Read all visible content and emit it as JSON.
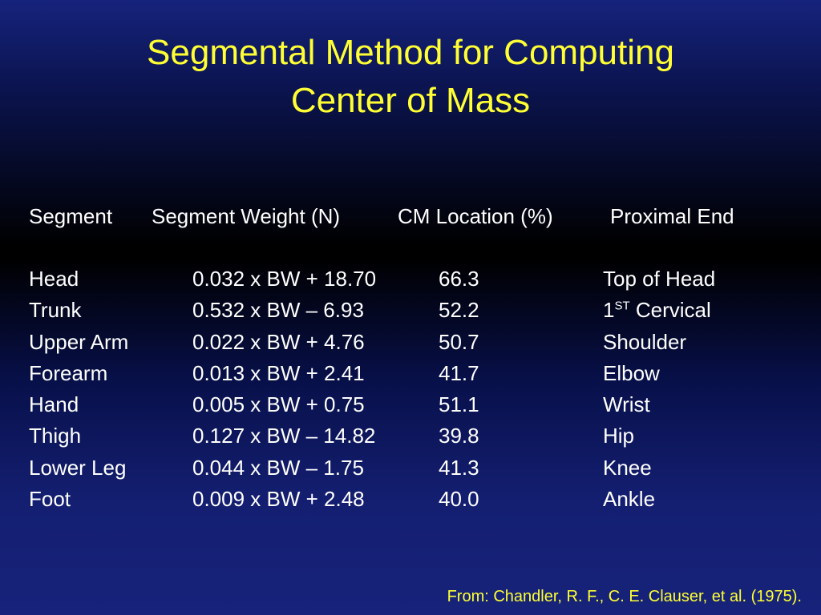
{
  "title": {
    "line1": "Segmental Method for Computing",
    "line2": "Center of Mass"
  },
  "table": {
    "headers": {
      "segment": "Segment",
      "weight": "Segment Weight (N)",
      "cm": "CM Location (%)",
      "proximal": "Proximal End"
    },
    "rows": [
      {
        "segment": "Head",
        "weight": "0.032 x BW + 18.70",
        "cm": "66.3",
        "proximal": "Top of Head",
        "proximal_sup": "",
        "proximal_rest": ""
      },
      {
        "segment": "Trunk",
        "weight": "0.532 x BW – 6.93",
        "cm": "52.2",
        "proximal": "1",
        "proximal_sup": "ST",
        "proximal_rest": " Cervical"
      },
      {
        "segment": "Upper Arm",
        "weight": "0.022 x BW + 4.76",
        "cm": "50.7",
        "proximal": "Shoulder",
        "proximal_sup": "",
        "proximal_rest": ""
      },
      {
        "segment": "Forearm",
        "weight": "0.013 x BW + 2.41",
        "cm": "41.7",
        "proximal": "Elbow",
        "proximal_sup": "",
        "proximal_rest": ""
      },
      {
        "segment": "Hand",
        "weight": "0.005 x BW + 0.75",
        "cm": "51.1",
        "proximal": "Wrist",
        "proximal_sup": "",
        "proximal_rest": ""
      },
      {
        "segment": "Thigh",
        "weight": "0.127 x BW – 14.82",
        "cm": "39.8",
        "proximal": "Hip",
        "proximal_sup": "",
        "proximal_rest": ""
      },
      {
        "segment": "Lower Leg",
        "weight": "0.044 x BW – 1.75",
        "cm": "41.3",
        "proximal": "Knee",
        "proximal_sup": "",
        "proximal_rest": ""
      },
      {
        "segment": "Foot",
        "weight": "0.009 x BW + 2.48",
        "cm": "40.0",
        "proximal": "Ankle",
        "proximal_sup": "",
        "proximal_rest": ""
      }
    ]
  },
  "citation": "From: Chandler, R. F., C. E. Clauser, et al. (1975).",
  "colors": {
    "title": "#ffff33",
    "body_text": "#ffffff",
    "background_top": "#16237c",
    "background_mid": "#000000",
    "background_bottom": "#17237a"
  }
}
